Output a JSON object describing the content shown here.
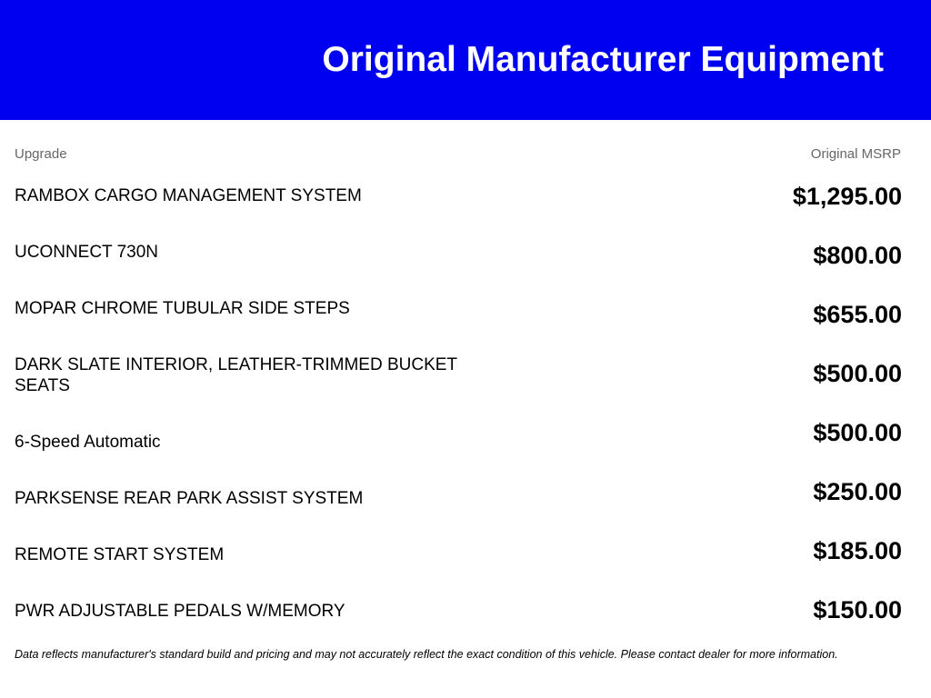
{
  "header": {
    "title": "Original Manufacturer Equipment",
    "background_color": "#0000f0"
  },
  "table": {
    "columns": {
      "upgrade": "Upgrade",
      "msrp": "Original MSRP"
    },
    "rows": [
      {
        "upgrade": "RAMBOX CARGO MANAGEMENT SYSTEM",
        "msrp": "$1,295.00"
      },
      {
        "upgrade": "UCONNECT 730N",
        "msrp": "$800.00"
      },
      {
        "upgrade": "MOPAR CHROME TUBULAR SIDE STEPS",
        "msrp": "$655.00"
      },
      {
        "upgrade": "DARK SLATE INTERIOR, LEATHER-TRIMMED BUCKET SEATS",
        "msrp": "$500.00"
      },
      {
        "upgrade": "6-Speed Automatic",
        "msrp": "$500.00"
      },
      {
        "upgrade": "PARKSENSE REAR PARK ASSIST SYSTEM",
        "msrp": "$250.00"
      },
      {
        "upgrade": "REMOTE START SYSTEM",
        "msrp": "$185.00"
      },
      {
        "upgrade": "PWR ADJUSTABLE PEDALS W/MEMORY",
        "msrp": "$150.00"
      }
    ]
  },
  "disclaimer": "Data reflects manufacturer's standard build and pricing and may not accurately reflect the exact condition of this vehicle. Please contact dealer for more information."
}
